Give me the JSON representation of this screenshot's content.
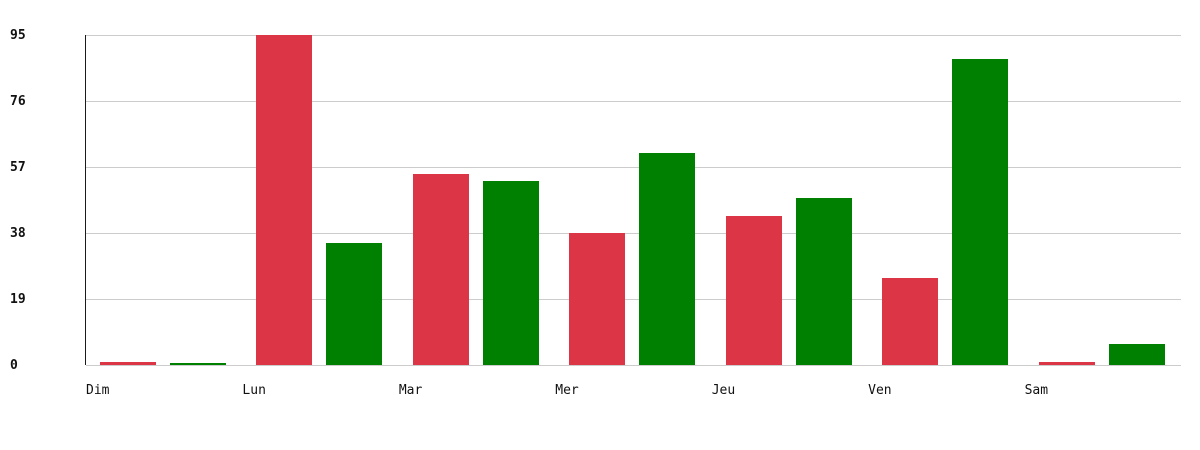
{
  "page": {
    "background": "#ffffff"
  },
  "colors": {
    "bar_red": "#dc3545",
    "bar_green": "#008000",
    "gridline": "#cccccc",
    "axis": "#1a1a1a",
    "text": "#111111"
  },
  "chart_data": {
    "type": "bar",
    "title": "",
    "xlabel": "",
    "ylabel": "",
    "categories": [
      "Dim",
      "Lun",
      "Mar",
      "Mer",
      "Jeu",
      "Ven",
      "Sam"
    ],
    "series": [
      {
        "name": "red",
        "color": "#dc3545",
        "values": [
          1,
          95,
          55,
          38,
          43,
          25,
          1
        ]
      },
      {
        "name": "green",
        "color": "#008000",
        "values": [
          0.5,
          35,
          53,
          61,
          48,
          88,
          6
        ]
      }
    ],
    "ylim": [
      0,
      95
    ],
    "yticks": [
      0,
      19,
      38,
      57,
      76,
      95
    ],
    "grid": true,
    "legend": "none"
  }
}
